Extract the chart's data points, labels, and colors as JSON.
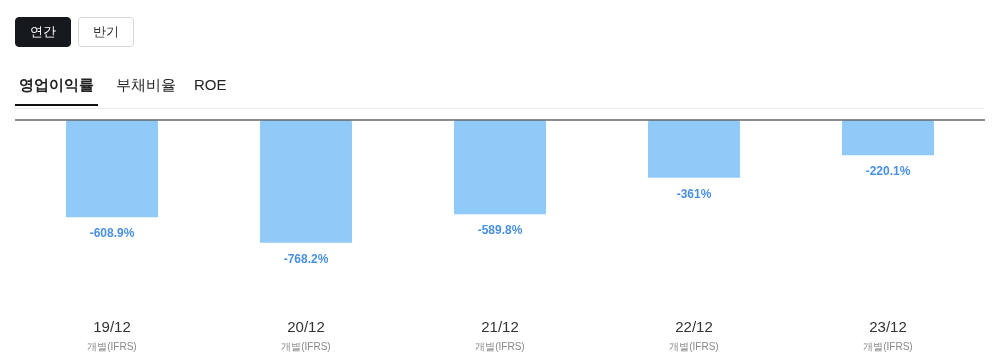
{
  "chart_data": {
    "type": "bar",
    "title": "영업이익률",
    "annotations": [
      "연간",
      "반기",
      "부채비율",
      "ROE"
    ],
    "categories": [
      "19/12\n개별(IFRS)",
      "20/12\n개별(IFRS)",
      "21/12\n개별(IFRS)",
      "22/12\n개별(IFRS)",
      "23/12\n개별(IFRS)"
    ],
    "values": [
      -608.9,
      -768.2,
      -589.8,
      -361,
      -220.1
    ],
    "value_labels": [
      "-608.9%",
      "-768.2%",
      "-589.8%",
      "-361%",
      "-220.1%"
    ],
    "color": "#90caf9"
  }
}
